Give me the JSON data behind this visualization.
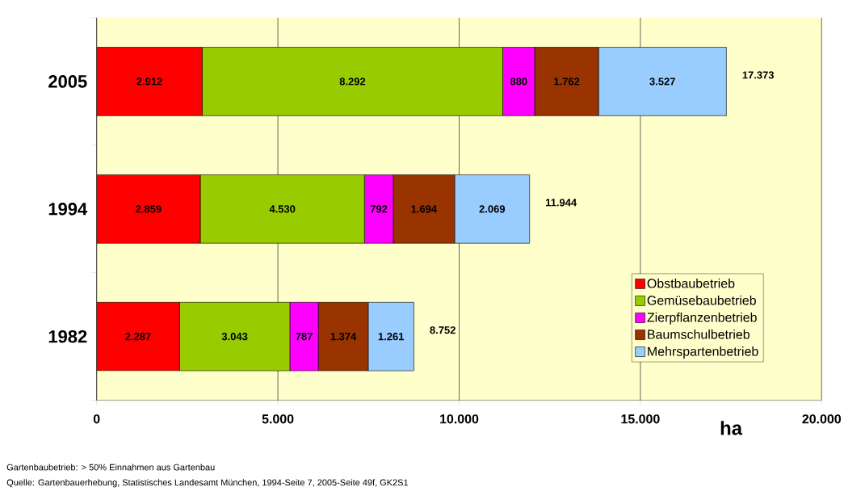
{
  "chart_data": {
    "type": "bar",
    "orientation": "horizontal",
    "stacked": true,
    "categories": [
      "2005",
      "1994",
      "1982"
    ],
    "series": [
      {
        "name": "Obstbaubetrieb",
        "color": "#ff0000",
        "values": [
          2912,
          2859,
          2287
        ],
        "value_labels": [
          "2.912",
          "2.859",
          "2.287"
        ]
      },
      {
        "name": "Gemüsebaubetrieb",
        "color": "#99cc00",
        "values": [
          8292,
          4530,
          3043
        ],
        "value_labels": [
          "8.292",
          "4.530",
          "3.043"
        ]
      },
      {
        "name": "Zierpflanzenbetrieb",
        "color": "#ff00ff",
        "values": [
          880,
          792,
          787
        ],
        "value_labels": [
          "880",
          "792",
          "787"
        ]
      },
      {
        "name": "Baumschulbetrieb",
        "color": "#993300",
        "values": [
          1762,
          1694,
          1374
        ],
        "value_labels": [
          "1.762",
          "1.694",
          "1.374"
        ]
      },
      {
        "name": "Mehrspartenbetrieb",
        "color": "#99ccff",
        "values": [
          3527,
          2069,
          1261
        ],
        "value_labels": [
          "3.527",
          "2.069",
          "1.261"
        ]
      }
    ],
    "totals": [
      "17.373",
      "11.944",
      "8.752"
    ],
    "xlabel": "ha",
    "xlim": [
      0,
      20000
    ],
    "xticks": [
      0,
      {
        "value": 5000,
        "label": "5.000"
      },
      {
        "value": 10000,
        "label": "10.000"
      },
      {
        "value": 15000,
        "label": "15.000"
      },
      {
        "value": 20000,
        "label": "20.000"
      }
    ],
    "grid": "x",
    "legend": "bottom right",
    "annotations": [
      "Gartenbaubetrieb: > 50% Einnahmen aus Gartenbau",
      "Quelle: Gartenbauerhebung, Statistisches Landesamt München, 1994-Seite 7, 2005-Seite 49f, GK2S1"
    ]
  }
}
